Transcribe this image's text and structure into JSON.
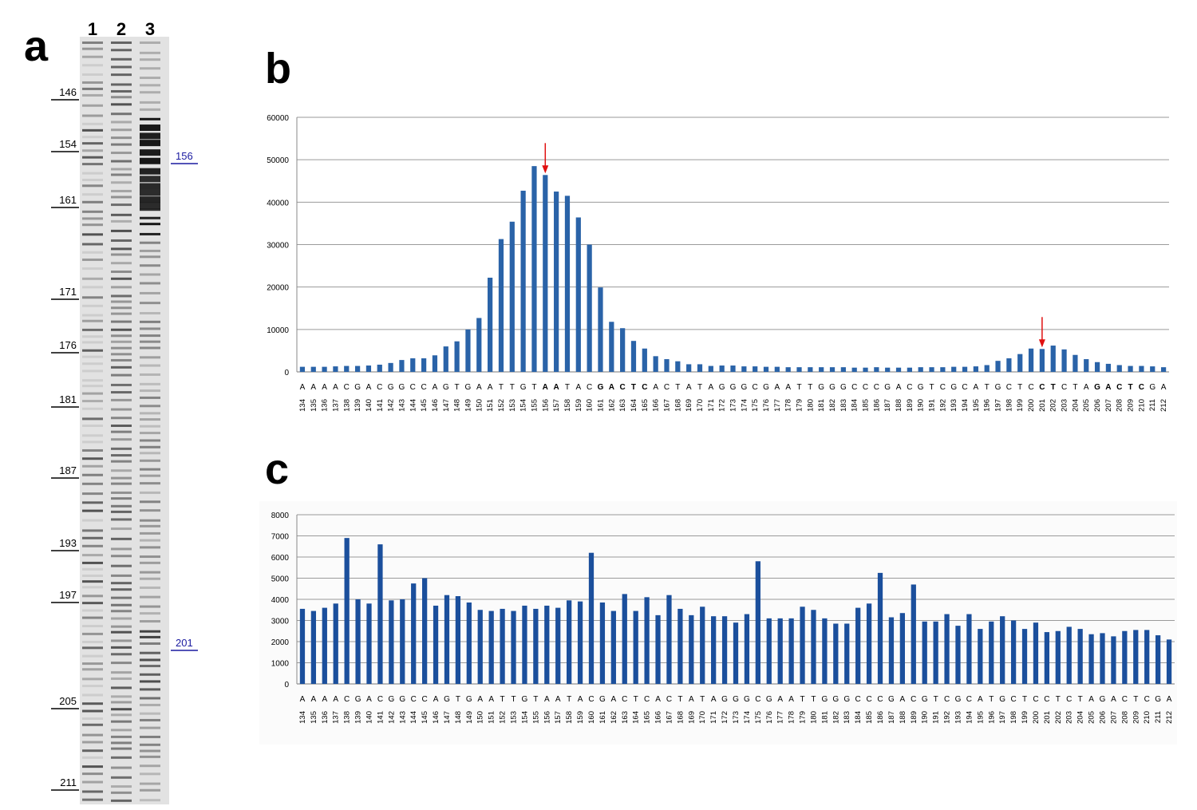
{
  "panel_labels": [
    "a",
    "b",
    "c"
  ],
  "gel": {
    "lanes": [
      "1",
      "2",
      "3"
    ],
    "markers": [
      "146",
      "154",
      "161",
      "171",
      "176",
      "181",
      "187",
      "193",
      "197",
      "205",
      "211"
    ],
    "annotations": [
      "156",
      "201"
    ]
  },
  "chart_data": [
    {
      "type": "bar",
      "color": "#2a63a8",
      "categories": [
        134,
        135,
        136,
        137,
        138,
        139,
        140,
        141,
        142,
        143,
        144,
        145,
        146,
        147,
        148,
        149,
        150,
        151,
        152,
        153,
        154,
        155,
        156,
        157,
        158,
        159,
        160,
        161,
        162,
        163,
        164,
        165,
        166,
        167,
        168,
        169,
        170,
        171,
        172,
        173,
        174,
        175,
        176,
        177,
        178,
        179,
        180,
        181,
        182,
        183,
        184,
        185,
        186,
        187,
        188,
        189,
        190,
        191,
        192,
        193,
        194,
        195,
        196,
        197,
        198,
        199,
        200,
        201,
        202,
        203,
        204,
        205,
        206,
        207,
        208,
        209,
        210,
        211,
        212
      ],
      "sequence": [
        "A",
        "A",
        "A",
        "A",
        "C",
        "G",
        "A",
        "C",
        "G",
        "G",
        "C",
        "C",
        "A",
        "G",
        "T",
        "G",
        "A",
        "A",
        "T",
        "T",
        "G",
        "T",
        "A",
        "A",
        "T",
        "A",
        "C",
        "G",
        "A",
        "C",
        "T",
        "C",
        "A",
        "C",
        "T",
        "A",
        "T",
        "A",
        "G",
        "G",
        "G",
        "C",
        "G",
        "A",
        "A",
        "T",
        "T",
        "G",
        "G",
        "G",
        "C",
        "C",
        "C",
        "G",
        "A",
        "C",
        "G",
        "T",
        "C",
        "G",
        "C",
        "A",
        "T",
        "G",
        "C",
        "T",
        "C",
        "C",
        "T",
        "C",
        "T",
        "A",
        "G",
        "A",
        "C",
        "T",
        "C",
        "G",
        "A"
      ],
      "bold_ranges": [
        [
          156,
          157
        ],
        [
          161,
          165
        ],
        [
          201,
          202
        ],
        [
          206,
          210
        ]
      ],
      "arrows": [
        156,
        201
      ],
      "values": [
        1200,
        1200,
        1200,
        1300,
        1400,
        1400,
        1500,
        1700,
        2100,
        2800,
        3200,
        3200,
        3900,
        6000,
        7200,
        10000,
        12700,
        22200,
        31300,
        35400,
        42700,
        48500,
        46400,
        42500,
        41500,
        36400,
        30000,
        19900,
        11800,
        10300,
        7300,
        5500,
        3700,
        3000,
        2500,
        1800,
        1800,
        1400,
        1500,
        1500,
        1300,
        1300,
        1200,
        1200,
        1100,
        1100,
        1100,
        1100,
        1100,
        1100,
        1000,
        1000,
        1100,
        1000,
        1000,
        1000,
        1100,
        1100,
        1100,
        1200,
        1200,
        1300,
        1600,
        2600,
        3200,
        4200,
        5500,
        5400,
        6200,
        5300,
        4000,
        3000,
        2300,
        1900,
        1600,
        1400,
        1400,
        1300,
        1100
      ],
      "ylim": [
        0,
        60000
      ],
      "yticks": [
        0,
        10000,
        20000,
        30000,
        40000,
        50000,
        60000
      ],
      "grid": true
    },
    {
      "type": "bar",
      "color": "#1b4f9c",
      "categories": [
        134,
        135,
        136,
        137,
        138,
        139,
        140,
        141,
        142,
        143,
        144,
        145,
        146,
        147,
        148,
        149,
        150,
        151,
        152,
        153,
        154,
        155,
        156,
        157,
        158,
        159,
        160,
        161,
        162,
        163,
        164,
        165,
        166,
        167,
        168,
        169,
        170,
        171,
        172,
        173,
        174,
        175,
        176,
        177,
        178,
        179,
        180,
        181,
        182,
        183,
        184,
        185,
        186,
        187,
        188,
        189,
        190,
        191,
        192,
        193,
        194,
        195,
        196,
        197,
        198,
        199,
        200,
        201,
        202,
        203,
        204,
        205,
        206,
        207,
        208,
        209,
        210,
        211,
        212
      ],
      "sequence": [
        "A",
        "A",
        "A",
        "A",
        "C",
        "G",
        "A",
        "C",
        "G",
        "G",
        "C",
        "C",
        "A",
        "G",
        "T",
        "G",
        "A",
        "A",
        "T",
        "T",
        "G",
        "T",
        "A",
        "A",
        "T",
        "A",
        "C",
        "G",
        "A",
        "C",
        "T",
        "C",
        "A",
        "C",
        "T",
        "A",
        "T",
        "A",
        "G",
        "G",
        "G",
        "C",
        "G",
        "A",
        "A",
        "T",
        "T",
        "G",
        "G",
        "G",
        "C",
        "C",
        "C",
        "G",
        "A",
        "C",
        "G",
        "T",
        "C",
        "G",
        "C",
        "A",
        "T",
        "G",
        "C",
        "T",
        "C",
        "C",
        "T",
        "C",
        "T",
        "A",
        "G",
        "A",
        "C",
        "T",
        "C",
        "G",
        "A"
      ],
      "values": [
        3550,
        3450,
        3600,
        3800,
        6900,
        4000,
        3800,
        6600,
        3950,
        4000,
        4750,
        5000,
        3700,
        4200,
        4150,
        3850,
        3500,
        3450,
        3550,
        3450,
        3700,
        3550,
        3700,
        3600,
        3950,
        3900,
        6200,
        3850,
        3450,
        4250,
        3450,
        4100,
        3250,
        4200,
        3550,
        3250,
        3650,
        3200,
        3200,
        2900,
        3300,
        5800,
        3100,
        3100,
        3100,
        3650,
        3500,
        3100,
        2850,
        2850,
        3600,
        3800,
        5250,
        3150,
        3350,
        4700,
        2950,
        2950,
        3300,
        2750,
        3300,
        2600,
        2950,
        3200,
        3000,
        2600,
        2900,
        2450,
        2500,
        2700,
        2600,
        2350,
        2400,
        2250,
        2500,
        2550,
        2550,
        2300,
        2100
      ],
      "ylim": [
        0,
        8000
      ],
      "yticks": [
        0,
        1000,
        2000,
        3000,
        4000,
        5000,
        6000,
        7000,
        8000
      ],
      "grid": true
    }
  ]
}
